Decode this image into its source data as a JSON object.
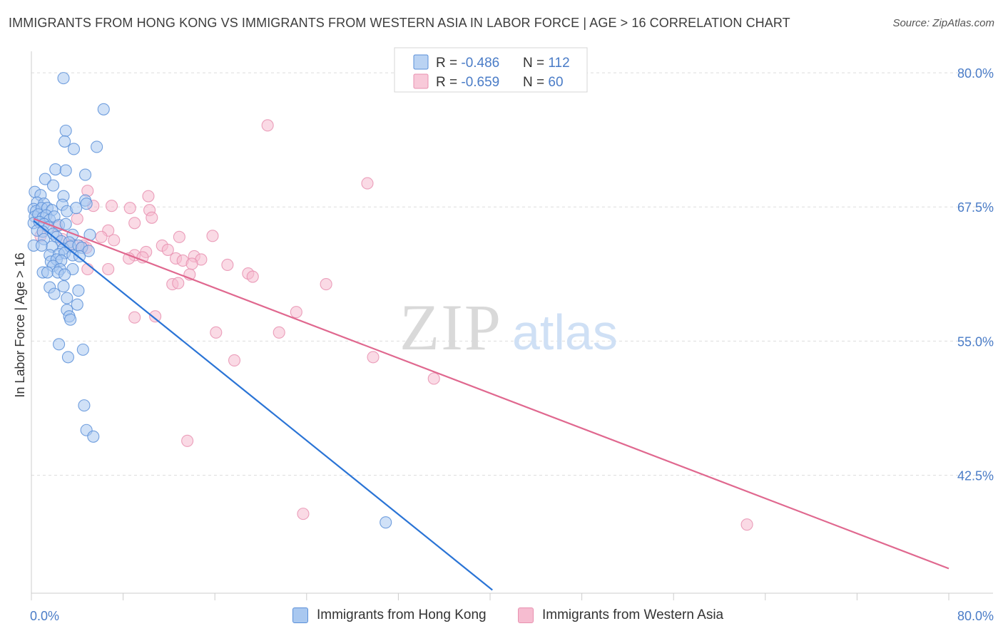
{
  "title": "IMMIGRANTS FROM HONG KONG VS IMMIGRANTS FROM WESTERN ASIA IN LABOR FORCE | AGE > 16 CORRELATION CHART",
  "source": "Source: ZipAtlas.com",
  "watermark": {
    "zip": "ZIP",
    "atlas": "atlas"
  },
  "chart_data": {
    "type": "scatter",
    "ylabel": "In Labor Force | Age > 16",
    "xlabel": "",
    "xlim": [
      0,
      80
    ],
    "ylim": [
      31.5,
      82
    ],
    "x_tick_labels": [
      {
        "value": 0,
        "label": "0.0%"
      },
      {
        "value": 80,
        "label": "80.0%"
      }
    ],
    "y_tick_labels": [
      {
        "value": 80,
        "label": "80.0%"
      },
      {
        "value": 67.5,
        "label": "67.5%"
      },
      {
        "value": 55,
        "label": "55.0%"
      },
      {
        "value": 42.5,
        "label": "42.5%"
      }
    ],
    "grid": true,
    "legend": {
      "placement": "top-center",
      "entries": [
        {
          "r_label": "R = ",
          "r_value": "-0.486",
          "n_label": "N = ",
          "n_value": "112"
        },
        {
          "r_label": "R = ",
          "r_value": "-0.659",
          "n_label": "N = ",
          "n_value": "60"
        }
      ]
    },
    "colors": {
      "hk_fill": "#a9c8f0",
      "hk_stroke": "#5a8fd8",
      "hk_line": "#2a74d6",
      "wa_fill": "#f6bcd0",
      "wa_stroke": "#e891b0",
      "wa_line": "#e0688f",
      "tick_label": "#4a7cc7",
      "grid": "#dddddd"
    },
    "series": [
      {
        "name": "Immigrants from Hong Kong",
        "trend": [
          [
            0.2,
            66.2
          ],
          [
            40.2,
            31.8
          ]
        ],
        "points": [
          [
            2.8,
            79.5
          ],
          [
            6.3,
            76.6
          ],
          [
            3.0,
            74.6
          ],
          [
            2.9,
            73.6
          ],
          [
            3.7,
            72.9
          ],
          [
            5.7,
            73.1
          ],
          [
            2.1,
            71.0
          ],
          [
            3.0,
            70.9
          ],
          [
            4.7,
            70.5
          ],
          [
            1.2,
            70.1
          ],
          [
            1.9,
            69.5
          ],
          [
            0.3,
            68.9
          ],
          [
            0.8,
            68.6
          ],
          [
            2.8,
            68.5
          ],
          [
            4.7,
            68.1
          ],
          [
            0.5,
            67.9
          ],
          [
            1.1,
            67.8
          ],
          [
            2.7,
            67.7
          ],
          [
            0.2,
            67.3
          ],
          [
            0.4,
            67.1
          ],
          [
            0.9,
            67.4
          ],
          [
            1.4,
            67.4
          ],
          [
            1.8,
            67.2
          ],
          [
            3.1,
            67.1
          ],
          [
            3.9,
            67.4
          ],
          [
            4.8,
            67.8
          ],
          [
            0.3,
            66.6
          ],
          [
            0.6,
            66.8
          ],
          [
            1.0,
            66.5
          ],
          [
            1.3,
            66.7
          ],
          [
            1.6,
            66.3
          ],
          [
            2.0,
            66.6
          ],
          [
            0.2,
            66.0
          ],
          [
            0.7,
            66.1
          ],
          [
            1.1,
            65.9
          ],
          [
            1.5,
            65.6
          ],
          [
            2.4,
            65.8
          ],
          [
            3.0,
            65.9
          ],
          [
            0.5,
            65.3
          ],
          [
            1.0,
            65.2
          ],
          [
            1.9,
            65.0
          ],
          [
            2.2,
            64.7
          ],
          [
            3.6,
            64.9
          ],
          [
            5.1,
            64.9
          ],
          [
            1.1,
            64.5
          ],
          [
            2.6,
            64.3
          ],
          [
            3.3,
            64.2
          ],
          [
            0.2,
            63.9
          ],
          [
            0.9,
            63.9
          ],
          [
            1.8,
            63.8
          ],
          [
            2.8,
            63.6
          ],
          [
            3.4,
            63.8
          ],
          [
            4.1,
            63.9
          ],
          [
            4.4,
            63.7
          ],
          [
            5.0,
            63.4
          ],
          [
            1.6,
            63.0
          ],
          [
            2.4,
            63.1
          ],
          [
            2.9,
            63.2
          ],
          [
            3.6,
            63.0
          ],
          [
            4.2,
            62.9
          ],
          [
            1.7,
            62.4
          ],
          [
            2.2,
            62.6
          ],
          [
            2.6,
            62.5
          ],
          [
            1.9,
            62.0
          ],
          [
            2.5,
            61.7
          ],
          [
            3.6,
            61.7
          ],
          [
            1.0,
            61.4
          ],
          [
            1.4,
            61.4
          ],
          [
            2.3,
            61.4
          ],
          [
            2.9,
            61.2
          ],
          [
            1.6,
            60.0
          ],
          [
            2.8,
            60.1
          ],
          [
            4.1,
            59.7
          ],
          [
            2.0,
            59.4
          ],
          [
            3.1,
            59.0
          ],
          [
            4.0,
            58.4
          ],
          [
            3.1,
            57.9
          ],
          [
            3.3,
            57.3
          ],
          [
            3.4,
            57.0
          ],
          [
            2.4,
            54.7
          ],
          [
            4.5,
            54.2
          ],
          [
            3.2,
            53.5
          ],
          [
            4.6,
            49.0
          ],
          [
            4.8,
            46.7
          ],
          [
            5.4,
            46.1
          ],
          [
            30.9,
            38.1
          ]
        ]
      },
      {
        "name": "Immigrants from Western Asia",
        "trend": [
          [
            0.2,
            66.4
          ],
          [
            80.0,
            33.8
          ]
        ],
        "points": [
          [
            20.6,
            75.1
          ],
          [
            29.3,
            69.7
          ],
          [
            4.9,
            69.0
          ],
          [
            7.0,
            67.6
          ],
          [
            8.6,
            67.4
          ],
          [
            10.2,
            68.5
          ],
          [
            10.3,
            67.2
          ],
          [
            5.4,
            67.6
          ],
          [
            9.0,
            66.0
          ],
          [
            10.5,
            66.5
          ],
          [
            4.0,
            66.4
          ],
          [
            2.2,
            65.7
          ],
          [
            6.7,
            65.3
          ],
          [
            0.8,
            64.8
          ],
          [
            2.7,
            64.5
          ],
          [
            6.1,
            64.7
          ],
          [
            7.2,
            64.4
          ],
          [
            12.9,
            64.7
          ],
          [
            15.8,
            64.8
          ],
          [
            3.6,
            64.0
          ],
          [
            4.5,
            63.9
          ],
          [
            4.8,
            63.7
          ],
          [
            11.4,
            63.9
          ],
          [
            11.9,
            63.5
          ],
          [
            10.0,
            63.3
          ],
          [
            9.0,
            63.0
          ],
          [
            9.7,
            62.8
          ],
          [
            12.6,
            62.7
          ],
          [
            14.2,
            62.9
          ],
          [
            14.8,
            62.6
          ],
          [
            8.5,
            62.7
          ],
          [
            13.2,
            62.5
          ],
          [
            14.0,
            62.2
          ],
          [
            17.1,
            62.1
          ],
          [
            4.9,
            61.7
          ],
          [
            6.7,
            61.7
          ],
          [
            13.8,
            61.2
          ],
          [
            18.9,
            61.3
          ],
          [
            19.3,
            61.0
          ],
          [
            12.3,
            60.3
          ],
          [
            12.8,
            60.4
          ],
          [
            25.7,
            60.3
          ],
          [
            23.1,
            57.7
          ],
          [
            9.0,
            57.2
          ],
          [
            10.8,
            57.3
          ],
          [
            16.1,
            55.8
          ],
          [
            21.6,
            55.8
          ],
          [
            17.7,
            53.2
          ],
          [
            29.8,
            53.5
          ],
          [
            35.1,
            51.5
          ],
          [
            13.6,
            45.7
          ],
          [
            23.7,
            38.9
          ],
          [
            62.4,
            37.9
          ]
        ]
      }
    ]
  }
}
